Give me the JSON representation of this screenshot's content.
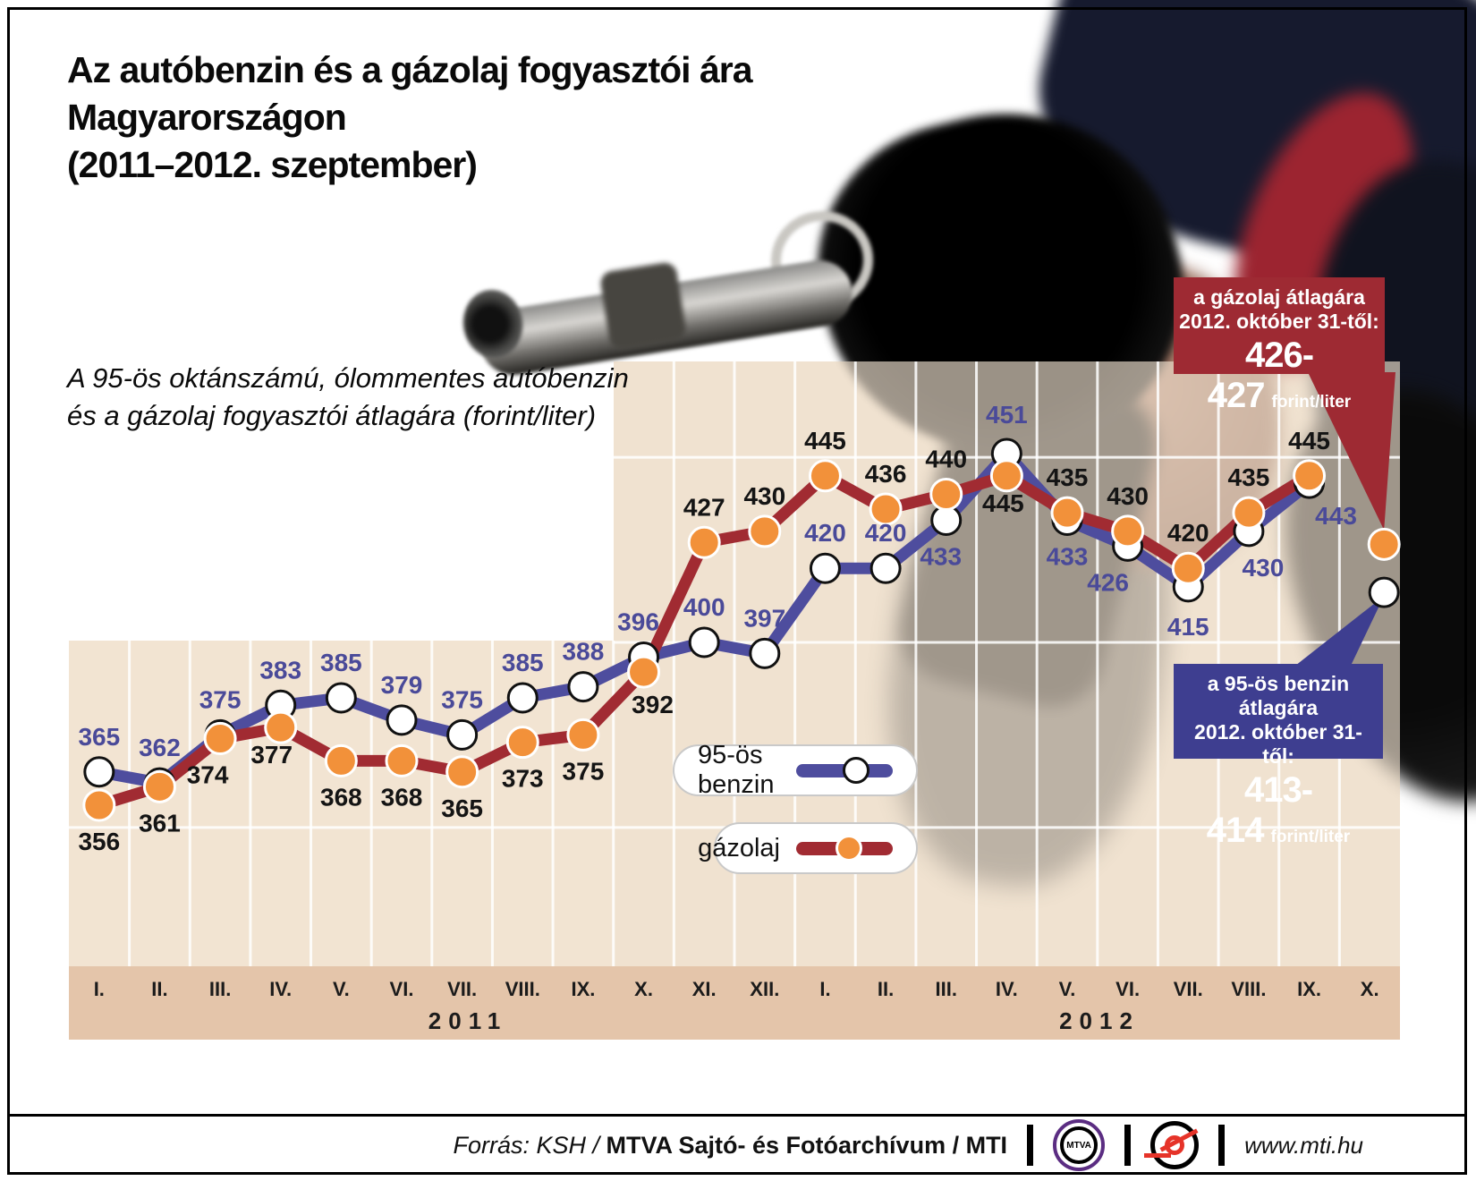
{
  "page": {
    "title_lines": [
      "Az autóbenzin és a gázolaj fogyasztói ára",
      "Magyarországon",
      "(2011–2012. szeptember)"
    ],
    "subtitle_lines": [
      "A 95-ös oktánszámú, ólommentes autóbenzin",
      "és a gázolaj fogyasztói átlagára (forint/liter)"
    ]
  },
  "chart_data": {
    "type": "line",
    "x_ticks": [
      "I.",
      "II.",
      "III.",
      "IV.",
      "V.",
      "VI.",
      "VII.",
      "VIII.",
      "IX.",
      "X.",
      "XI.",
      "XII.",
      "I.",
      "II.",
      "III.",
      "IV.",
      "V.",
      "VI.",
      "VII.",
      "VIII.",
      "IX.",
      "X."
    ],
    "x_years": [
      {
        "label": "2011"
      },
      {
        "label": "2012"
      }
    ],
    "ylim": [
      312,
      476
    ],
    "gridline_values": [
      350,
      400,
      450
    ],
    "grid": true,
    "legend_position": "center-bottom",
    "connected_points": 21,
    "note": "last point of each series is the detached announced price for 2012. X. 31",
    "series": [
      {
        "name": "95-ös benzin",
        "line_color": "#4e4d9e",
        "marker_fill": "#ffffff",
        "marker_stroke": "#111111",
        "label_color": "#4a4a99",
        "values": [
          365,
          362,
          375,
          383,
          385,
          379,
          375,
          385,
          388,
          396,
          400,
          397,
          420,
          420,
          433,
          451,
          433,
          426,
          415,
          430,
          443,
          413.5
        ],
        "labels": [
          "365",
          "362",
          "375",
          "383",
          "385",
          "379",
          "375",
          "385",
          "388",
          "396",
          "400",
          "397",
          "420",
          "420",
          "433",
          "451",
          "433",
          "426",
          "415",
          "430",
          "443",
          ""
        ],
        "label_side": [
          "a",
          "a",
          "a",
          "a",
          "a",
          "a",
          "a",
          "a",
          "a",
          "a",
          "a",
          "a",
          "a",
          "a",
          "b",
          "a",
          "b",
          "b",
          "b",
          "b",
          "b",
          ""
        ],
        "label_dx": [
          0,
          0,
          0,
          0,
          0,
          0,
          0,
          0,
          0,
          -6,
          0,
          0,
          0,
          0,
          -6,
          0,
          0,
          -22,
          0,
          16,
          30,
          0
        ],
        "label_dy": [
          0,
          0,
          0,
          0,
          0,
          0,
          0,
          0,
          0,
          0,
          0,
          0,
          0,
          0,
          0,
          -4,
          0,
          0,
          4,
          0,
          -4,
          0
        ]
      },
      {
        "name": "gázolaj",
        "line_color": "#a12b32",
        "marker_fill": "#f2913a",
        "marker_stroke": "#ffffff",
        "label_color": "#141414",
        "values": [
          356,
          361,
          374,
          377,
          368,
          368,
          365,
          373,
          375,
          392,
          427,
          430,
          445,
          436,
          440,
          445,
          435,
          430,
          420,
          435,
          445,
          426.5
        ],
        "labels": [
          "356",
          "361",
          "374",
          "377",
          "368",
          "368",
          "365",
          "373",
          "375",
          "392",
          "427",
          "430",
          "445",
          "436",
          "440",
          "445",
          "435",
          "430",
          "420",
          "435",
          "445",
          ""
        ],
        "label_side": [
          "b",
          "b",
          "b",
          "b",
          "b",
          "b",
          "b",
          "b",
          "b",
          "b",
          "a",
          "a",
          "a",
          "a",
          "a",
          "b",
          "a",
          "a",
          "a",
          "a",
          "a",
          ""
        ],
        "label_dx": [
          0,
          0,
          -14,
          -10,
          0,
          0,
          0,
          0,
          0,
          10,
          0,
          0,
          0,
          0,
          0,
          -4,
          0,
          0,
          0,
          0,
          0,
          0
        ],
        "label_dy": [
          0,
          0,
          0,
          -10,
          0,
          0,
          0,
          0,
          0,
          -4,
          0,
          0,
          0,
          0,
          0,
          -10,
          0,
          0,
          0,
          0,
          0,
          0
        ]
      }
    ]
  },
  "legend": {
    "benzin_label": "95-ös benzin",
    "gazolaj_label": "gázolaj"
  },
  "callouts": {
    "diesel": {
      "line1": "a gázolaj átlagára",
      "line2": "2012. október 31-től:",
      "value": "426-427",
      "unit": "forint/liter",
      "bg": "#9e2a33"
    },
    "benzin": {
      "line1": "a 95-ös benzin átlagára",
      "line2": "2012. október 31-től:",
      "value": "413-414",
      "unit": "forint/liter",
      "bg": "#3e3e90"
    }
  },
  "footer": {
    "source_italic": "Forrás: KSH /",
    "source_bold": "MTVA Sajtó- és Fotóarchívum / MTI",
    "mtva_logo_text": "MTVA",
    "site": "www.mti.hu"
  }
}
